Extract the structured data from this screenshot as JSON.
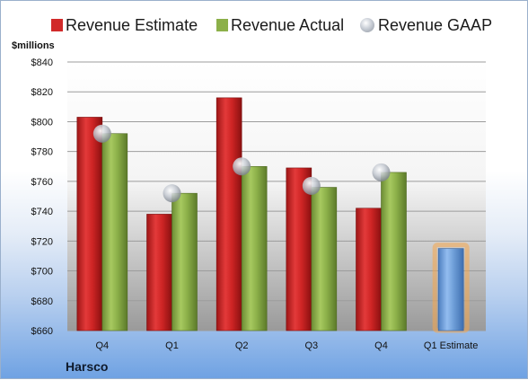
{
  "company": "Harsco",
  "chart_data": {
    "type": "bar",
    "title": "",
    "xlabel": "",
    "ylabel": "$millions",
    "ylim": [
      660,
      840
    ],
    "yticks": [
      "$660",
      "$680",
      "$700",
      "$720",
      "$740",
      "$760",
      "$780",
      "$800",
      "$820",
      "$840"
    ],
    "categories": [
      "Q4",
      "Q1",
      "Q2",
      "Q3",
      "Q4",
      "Q1 Estimate"
    ],
    "grid": true,
    "legend_position": "top",
    "series": [
      {
        "name": "Revenue Estimate",
        "type": "bar",
        "color": "#d12a2a",
        "values": [
          803,
          738,
          816,
          769,
          742,
          null
        ]
      },
      {
        "name": "Revenue Actual",
        "type": "bar",
        "color": "#8cb049",
        "values": [
          792,
          752,
          770,
          756,
          766,
          null
        ]
      },
      {
        "name": "Revenue GAAP",
        "type": "marker",
        "color": "#b9bec6",
        "values": [
          792,
          752,
          770,
          757,
          766,
          null
        ]
      },
      {
        "name": "Q1 Estimate",
        "type": "bar",
        "color": "#6f9fd8",
        "highlight": "#f5a64a",
        "values": [
          null,
          null,
          null,
          null,
          null,
          715
        ]
      }
    ]
  }
}
